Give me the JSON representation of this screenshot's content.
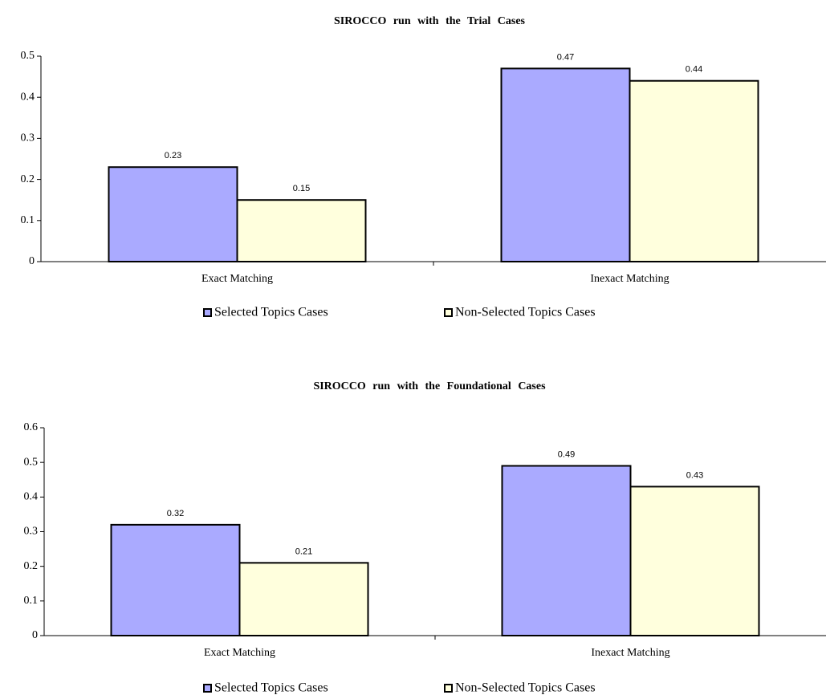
{
  "chart_data": [
    {
      "type": "bar",
      "title": "SIROCCO run with the Trial Cases",
      "categories": [
        "Exact Matching",
        "Inexact Matching"
      ],
      "series": [
        {
          "name": "Selected Topics Cases",
          "color": "#aaaaff",
          "values": [
            0.23,
            0.47
          ]
        },
        {
          "name": "Non-Selected Topics Cases",
          "color": "#ffffdd",
          "values": [
            0.15,
            0.44
          ]
        }
      ],
      "ylim": [
        0,
        0.5
      ],
      "yticks": [
        0,
        0.1,
        0.2,
        0.3,
        0.4,
        0.5
      ],
      "grid": false,
      "legend": "bottom"
    },
    {
      "type": "bar",
      "title": "SIROCCO run with the Foundational Cases",
      "categories": [
        "Exact Matching",
        "Inexact Matching"
      ],
      "series": [
        {
          "name": "Selected Topics Cases",
          "color": "#aaaaff",
          "values": [
            0.32,
            0.49
          ]
        },
        {
          "name": "Non-Selected Topics Cases",
          "color": "#ffffdd",
          "values": [
            0.21,
            0.43
          ]
        }
      ],
      "ylim": [
        0,
        0.6
      ],
      "yticks": [
        0,
        0.1,
        0.2,
        0.3,
        0.4,
        0.5,
        0.6
      ],
      "grid": false,
      "legend": "bottom"
    }
  ]
}
